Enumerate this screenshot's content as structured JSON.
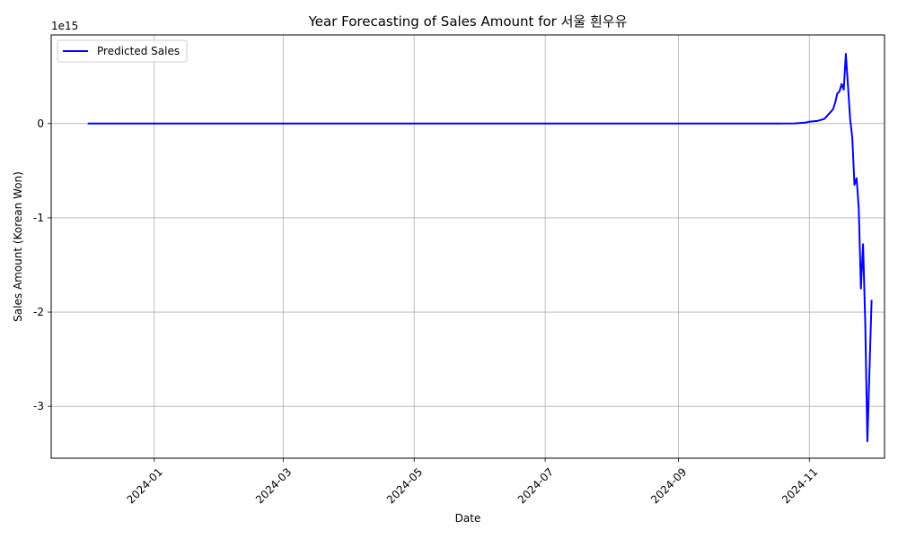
{
  "chart_data": {
    "type": "line",
    "title": "Year Forecasting of Sales Amount for 서울 흰우유",
    "xlabel": "Date",
    "ylabel": "Sales Amount (Korean Won)",
    "y_offset_text": "1e15",
    "x_ticks": [
      "2024-01",
      "2024-03",
      "2024-05",
      "2024-07",
      "2024-09",
      "2024-11"
    ],
    "x_tick_dates": [
      "2024-01-01",
      "2024-03-01",
      "2024-05-01",
      "2024-07-01",
      "2024-09-01",
      "2024-11-01"
    ],
    "y_ticks": [
      "0",
      "-1",
      "-2",
      "-3"
    ],
    "y_tick_values": [
      0,
      -1,
      -2,
      -3
    ],
    "ylim": [
      -3.55,
      0.94
    ],
    "xlim": [
      "2023-11-14",
      "2024-12-06"
    ],
    "grid": true,
    "legend": {
      "entries": [
        "Predicted Sales"
      ],
      "placement": "top-left"
    },
    "series": [
      {
        "name": "Predicted Sales",
        "color": "#0000ff",
        "points": [
          [
            "2023-12-01",
            0
          ],
          [
            "2024-03-01",
            0
          ],
          [
            "2024-06-01",
            0
          ],
          [
            "2024-09-01",
            0
          ],
          [
            "2024-10-15",
            0
          ],
          [
            "2024-10-25",
            0.002
          ],
          [
            "2024-10-30",
            0.01
          ],
          [
            "2024-11-01",
            0.02
          ],
          [
            "2024-11-05",
            0.03
          ],
          [
            "2024-11-08",
            0.05
          ],
          [
            "2024-11-10",
            0.1
          ],
          [
            "2024-11-12",
            0.15
          ],
          [
            "2024-11-13",
            0.22
          ],
          [
            "2024-11-14",
            0.32
          ],
          [
            "2024-11-15",
            0.34
          ],
          [
            "2024-11-16",
            0.42
          ],
          [
            "2024-11-17",
            0.36
          ],
          [
            "2024-11-18",
            0.74
          ],
          [
            "2024-11-19",
            0.4
          ],
          [
            "2024-11-20",
            0.05
          ],
          [
            "2024-11-21",
            -0.15
          ],
          [
            "2024-11-22",
            -0.65
          ],
          [
            "2024-11-23",
            -0.58
          ],
          [
            "2024-11-24",
            -0.9
          ],
          [
            "2024-11-25",
            -1.75
          ],
          [
            "2024-11-26",
            -1.28
          ],
          [
            "2024-11-27",
            -2.1
          ],
          [
            "2024-11-28",
            -3.37
          ],
          [
            "2024-11-29",
            -2.6
          ],
          [
            "2024-11-30",
            -1.87
          ]
        ]
      }
    ]
  }
}
